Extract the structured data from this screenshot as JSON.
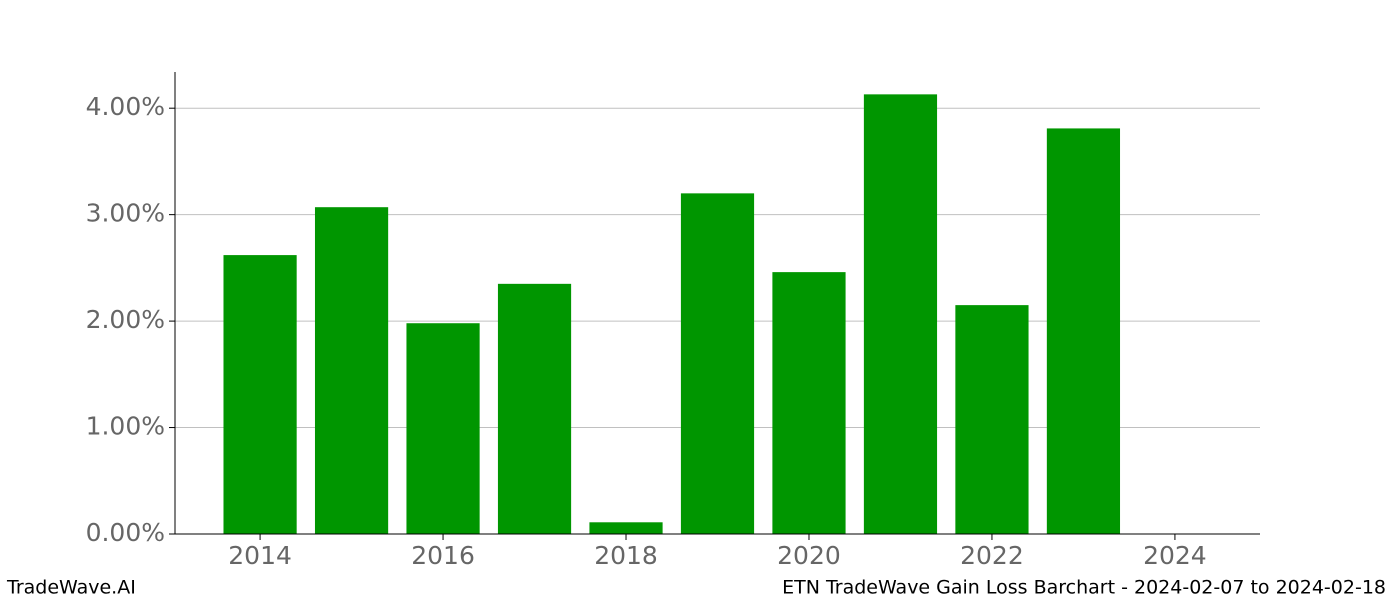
{
  "chart_data": {
    "type": "bar",
    "x": [
      2014,
      2015,
      2016,
      2017,
      2018,
      2019,
      2020,
      2021,
      2022,
      2023
    ],
    "values": [
      2.62,
      3.07,
      1.98,
      2.35,
      0.11,
      3.2,
      2.46,
      4.13,
      2.15,
      3.81
    ],
    "color": "#009600",
    "xlim": [
      2013.07,
      2024.93
    ],
    "xticks": [
      2014,
      2016,
      2018,
      2020,
      2022,
      2024
    ],
    "ylim": [
      0,
      4.34
    ],
    "yticks": [
      {
        "value": 0,
        "label": "0.00%"
      },
      {
        "value": 1,
        "label": "1.00%"
      },
      {
        "value": 2,
        "label": "2.00%"
      },
      {
        "value": 3,
        "label": "3.00%"
      },
      {
        "value": 4,
        "label": "4.00%"
      }
    ],
    "grid": true
  },
  "footer": {
    "left": "TradeWave.AI",
    "right": "ETN TradeWave Gain Loss Barchart - 2024-02-07 to 2024-02-18"
  }
}
